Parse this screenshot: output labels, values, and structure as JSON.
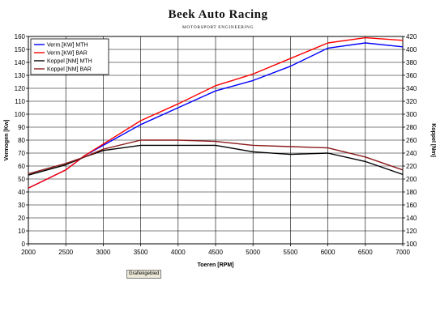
{
  "logo": {
    "title": "Beek Auto Racing",
    "subtitle": "MOTORSPORT ENGINEERING"
  },
  "button": {
    "label": "Grafiekgebied"
  },
  "chart_data": {
    "type": "line",
    "xlabel": "Toeren [RPM]",
    "ylabel": "Vermogen [Kw]",
    "y2label": "Koppel [Nm]",
    "xlim": [
      2000,
      7000
    ],
    "ylim": [
      0,
      160
    ],
    "y2lim": [
      100,
      420
    ],
    "x_ticks": [
      2000,
      2500,
      3000,
      3500,
      4000,
      4500,
      5000,
      5500,
      6000,
      6500,
      7000
    ],
    "y_ticks": [
      0,
      10,
      20,
      30,
      40,
      50,
      60,
      70,
      80,
      90,
      100,
      110,
      120,
      130,
      140,
      150,
      160
    ],
    "y2_ticks": [
      100,
      120,
      140,
      160,
      180,
      200,
      220,
      240,
      260,
      280,
      300,
      320,
      340,
      360,
      380,
      400,
      420
    ],
    "grid": true,
    "legend_position": "top-left",
    "series": [
      {
        "name": "Verm.[KW] MTH",
        "axis": "left",
        "color": "#0000ff",
        "x": [
          2000,
          2500,
          2750,
          3000,
          3500,
          4000,
          4500,
          5000,
          5500,
          6000,
          6500,
          7000
        ],
        "y": [
          43,
          57,
          68,
          76,
          92,
          105,
          118,
          126,
          137,
          151,
          155,
          152
        ]
      },
      {
        "name": "Verm.[KW] BAR",
        "axis": "left",
        "color": "#ff0000",
        "x": [
          2000,
          2500,
          2750,
          3000,
          3500,
          4000,
          4500,
          5000,
          5500,
          6000,
          6500,
          7000
        ],
        "y": [
          43,
          57,
          68,
          77,
          95,
          108,
          122,
          131,
          143,
          155,
          159,
          157
        ]
      },
      {
        "name": "Koppel [NM] MTH",
        "axis": "right",
        "color": "#000000",
        "x": [
          2000,
          2500,
          2750,
          3000,
          3500,
          4000,
          4500,
          5000,
          5500,
          6000,
          6500,
          7000
        ],
        "y": [
          206,
          222,
          234,
          244,
          252,
          252,
          252,
          242,
          238,
          240,
          227,
          207
        ]
      },
      {
        "name": "Koppel [NM] BAR",
        "axis": "right",
        "color": "#8b1a1a",
        "x": [
          2000,
          2500,
          2750,
          3000,
          3500,
          4000,
          4500,
          5000,
          5500,
          6000,
          6500,
          7000
        ],
        "y": [
          208,
          224,
          234,
          246,
          260,
          260,
          258,
          252,
          250,
          248,
          234,
          214
        ]
      }
    ]
  }
}
